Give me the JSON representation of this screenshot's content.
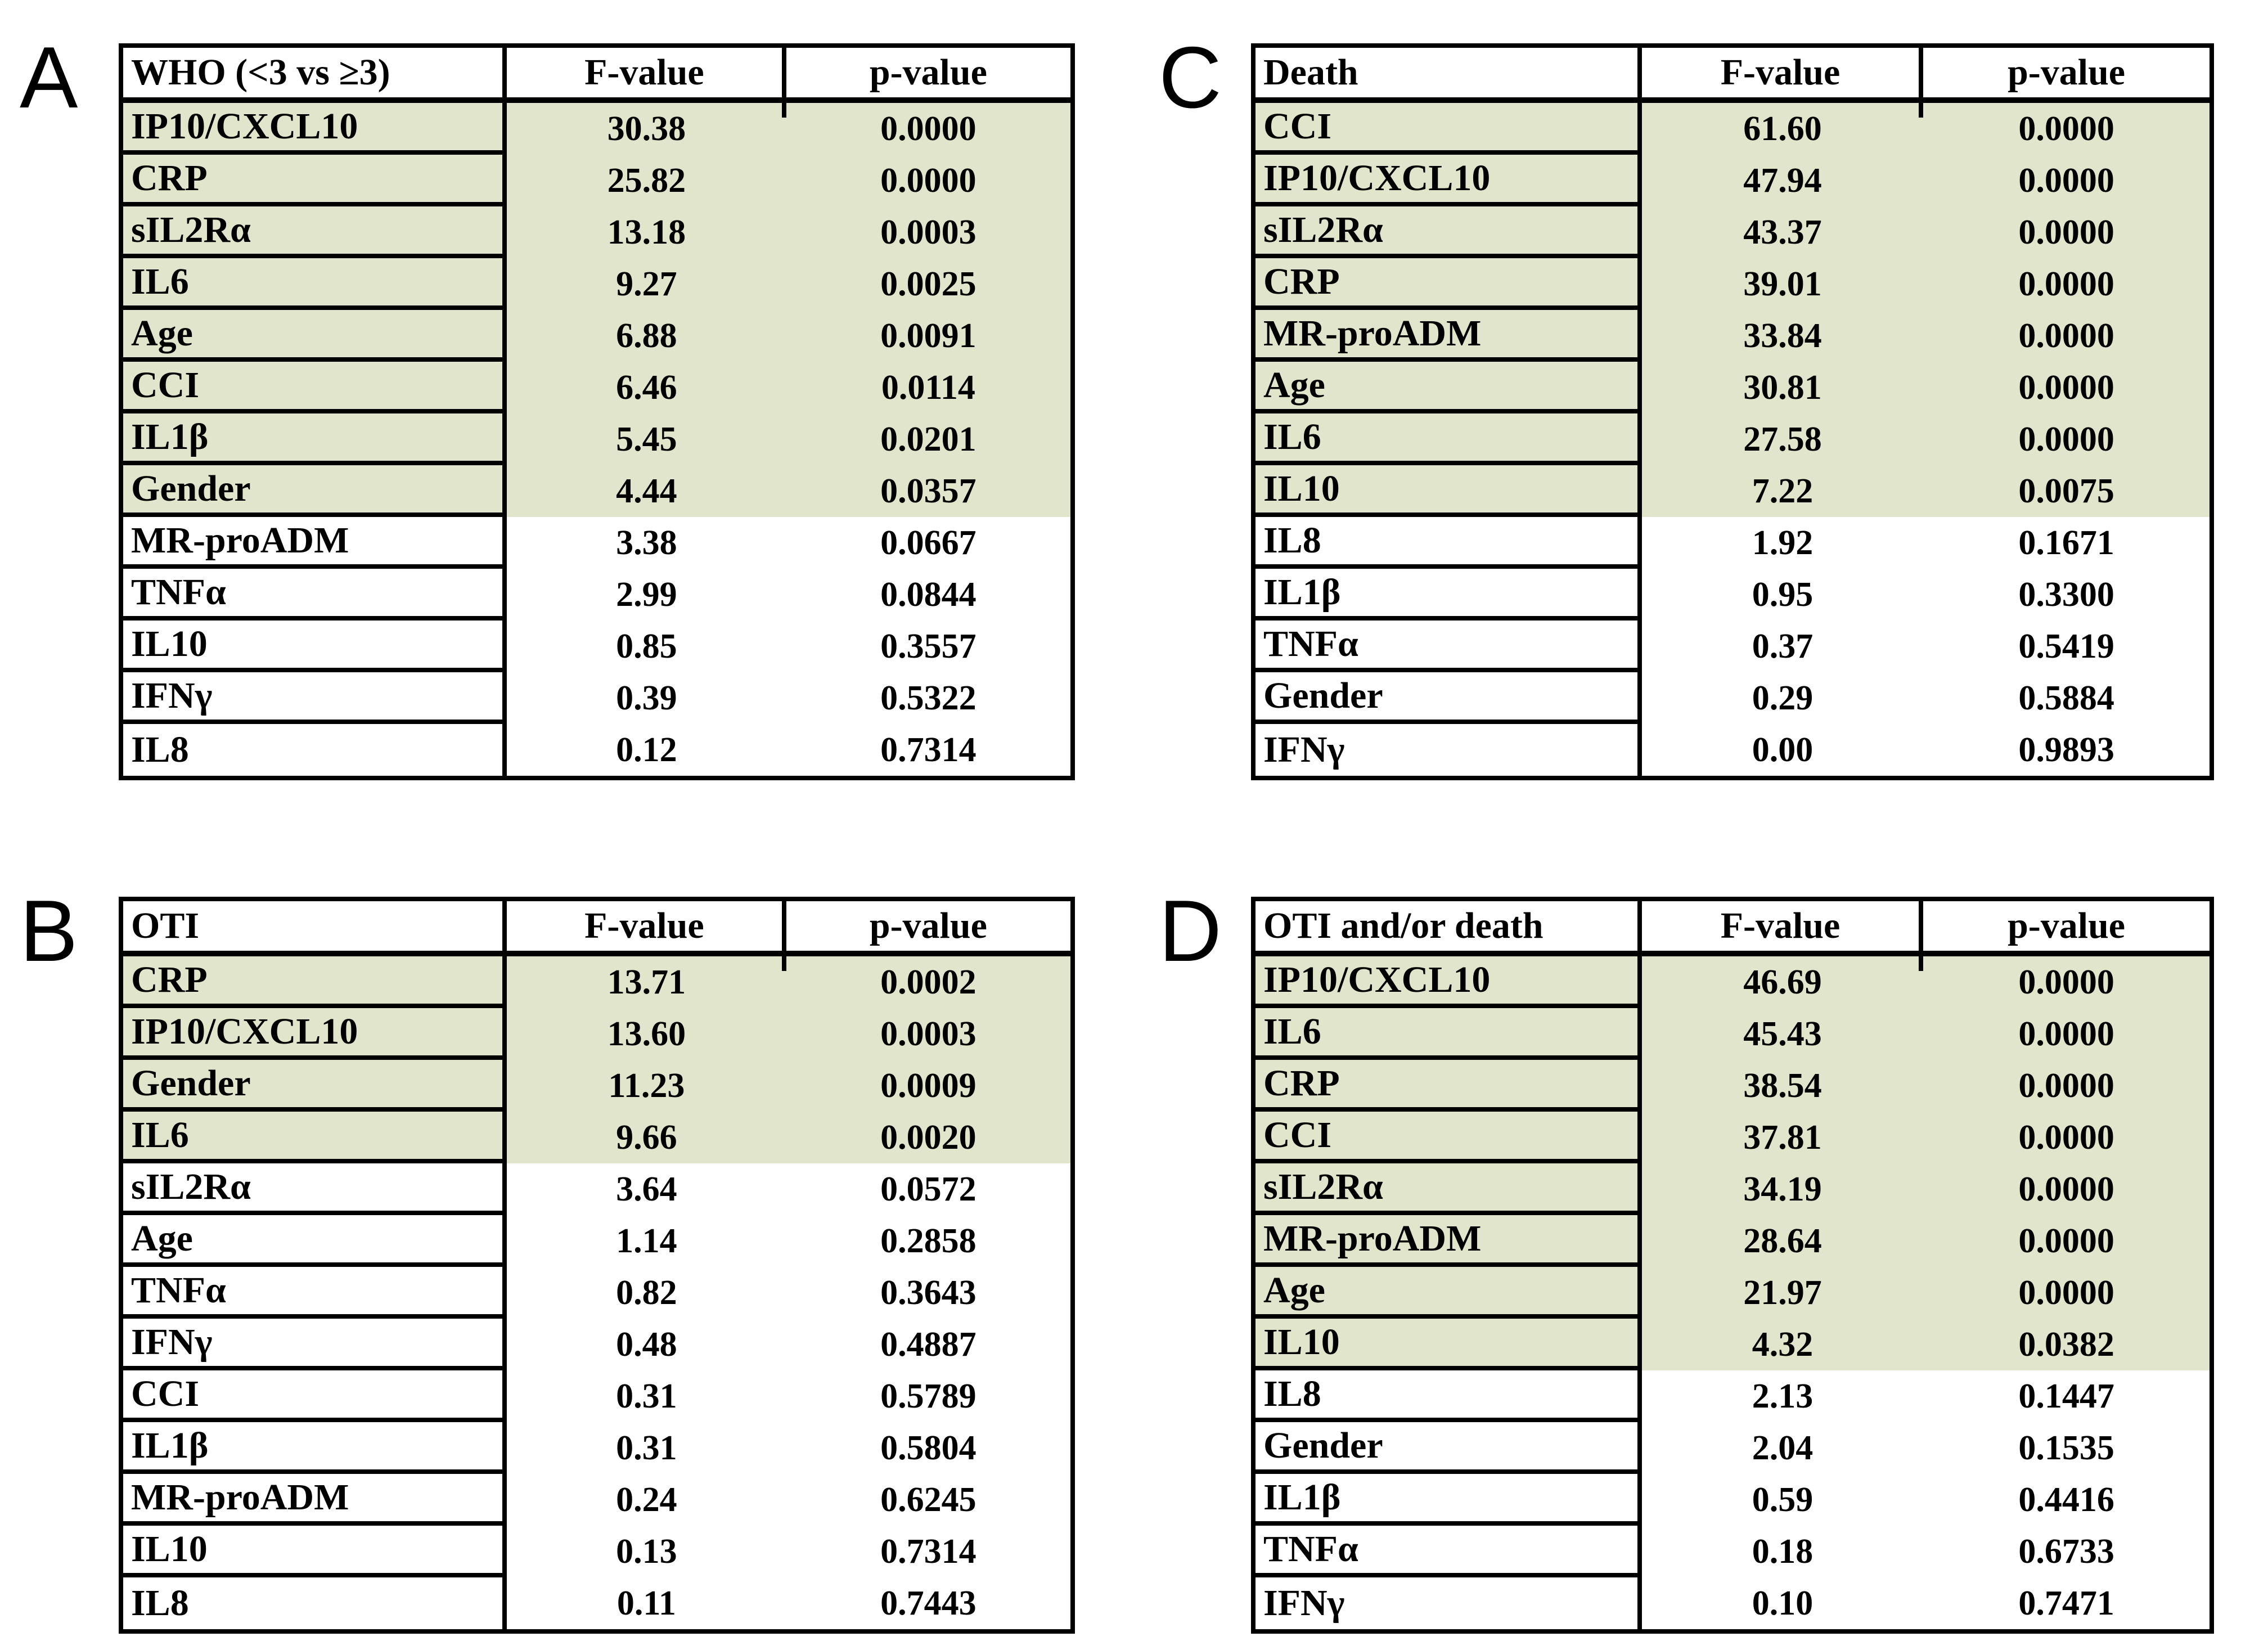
{
  "colors": {
    "highlight_green": "#e0e5cc",
    "border_black": "#000000",
    "header_bg": "#ffffff",
    "page_bg": "#ffffff",
    "text": "#000000"
  },
  "panels": [
    {
      "letter": "A",
      "title": "WHO (<3 vs ≥3)",
      "columns": [
        "F-value",
        "p-value"
      ],
      "rows": [
        {
          "label": "IP10/CXCL10",
          "f": "30.38",
          "p": "0.0000",
          "highlight": true
        },
        {
          "label": "CRP",
          "f": "25.82",
          "p": "0.0000",
          "highlight": true
        },
        {
          "label": "sIL2Rα",
          "f": "13.18",
          "p": "0.0003",
          "highlight": true
        },
        {
          "label": "IL6",
          "f": "9.27",
          "p": "0.0025",
          "highlight": true
        },
        {
          "label": "Age",
          "f": "6.88",
          "p": "0.0091",
          "highlight": true
        },
        {
          "label": "CCI",
          "f": "6.46",
          "p": "0.0114",
          "highlight": true
        },
        {
          "label": "IL1β",
          "f": "5.45",
          "p": "0.0201",
          "highlight": true
        },
        {
          "label": "Gender",
          "f": "4.44",
          "p": "0.0357",
          "highlight": true
        },
        {
          "label": "MR-proADM",
          "f": "3.38",
          "p": "0.0667",
          "highlight": false
        },
        {
          "label": "TNFα",
          "f": "2.99",
          "p": "0.0844",
          "highlight": false
        },
        {
          "label": "IL10",
          "f": "0.85",
          "p": "0.3557",
          "highlight": false
        },
        {
          "label": "IFNγ",
          "f": "0.39",
          "p": "0.5322",
          "highlight": false
        },
        {
          "label": "IL8",
          "f": "0.12",
          "p": "0.7314",
          "highlight": false
        }
      ]
    },
    {
      "letter": "C",
      "title": "Death",
      "columns": [
        "F-value",
        "p-value"
      ],
      "rows": [
        {
          "label": "CCI",
          "f": "61.60",
          "p": "0.0000",
          "highlight": true
        },
        {
          "label": "IP10/CXCL10",
          "f": "47.94",
          "p": "0.0000",
          "highlight": true
        },
        {
          "label": "sIL2Rα",
          "f": "43.37",
          "p": "0.0000",
          "highlight": true
        },
        {
          "label": "CRP",
          "f": "39.01",
          "p": "0.0000",
          "highlight": true
        },
        {
          "label": "MR-proADM",
          "f": "33.84",
          "p": "0.0000",
          "highlight": true
        },
        {
          "label": "Age",
          "f": "30.81",
          "p": "0.0000",
          "highlight": true
        },
        {
          "label": "IL6",
          "f": "27.58",
          "p": "0.0000",
          "highlight": true
        },
        {
          "label": "IL10",
          "f": "7.22",
          "p": "0.0075",
          "highlight": true
        },
        {
          "label": "IL8",
          "f": "1.92",
          "p": "0.1671",
          "highlight": false
        },
        {
          "label": "IL1β",
          "f": "0.95",
          "p": "0.3300",
          "highlight": false
        },
        {
          "label": "TNFα",
          "f": "0.37",
          "p": "0.5419",
          "highlight": false
        },
        {
          "label": "Gender",
          "f": "0.29",
          "p": "0.5884",
          "highlight": false
        },
        {
          "label": "IFNγ",
          "f": "0.00",
          "p": "0.9893",
          "highlight": false
        }
      ]
    },
    {
      "letter": "B",
      "title": "OTI",
      "columns": [
        "F-value",
        "p-value"
      ],
      "rows": [
        {
          "label": "CRP",
          "f": "13.71",
          "p": "0.0002",
          "highlight": true
        },
        {
          "label": "IP10/CXCL10",
          "f": "13.60",
          "p": "0.0003",
          "highlight": true
        },
        {
          "label": "Gender",
          "f": "11.23",
          "p": "0.0009",
          "highlight": true
        },
        {
          "label": "IL6",
          "f": "9.66",
          "p": "0.0020",
          "highlight": true
        },
        {
          "label": "sIL2Rα",
          "f": "3.64",
          "p": "0.0572",
          "highlight": false
        },
        {
          "label": "Age",
          "f": "1.14",
          "p": "0.2858",
          "highlight": false
        },
        {
          "label": "TNFα",
          "f": "0.82",
          "p": "0.3643",
          "highlight": false
        },
        {
          "label": "IFNγ",
          "f": "0.48",
          "p": "0.4887",
          "highlight": false
        },
        {
          "label": "CCI",
          "f": "0.31",
          "p": "0.5789",
          "highlight": false
        },
        {
          "label": "IL1β",
          "f": "0.31",
          "p": "0.5804",
          "highlight": false
        },
        {
          "label": "MR-proADM",
          "f": "0.24",
          "p": "0.6245",
          "highlight": false
        },
        {
          "label": "IL10",
          "f": "0.13",
          "p": "0.7314",
          "highlight": false
        },
        {
          "label": "IL8",
          "f": "0.11",
          "p": "0.7443",
          "highlight": false
        }
      ]
    },
    {
      "letter": "D",
      "title": "OTI and/or death",
      "columns": [
        "F-value",
        "p-value"
      ],
      "rows": [
        {
          "label": "IP10/CXCL10",
          "f": "46.69",
          "p": "0.0000",
          "highlight": true
        },
        {
          "label": "IL6",
          "f": "45.43",
          "p": "0.0000",
          "highlight": true
        },
        {
          "label": "CRP",
          "f": "38.54",
          "p": "0.0000",
          "highlight": true
        },
        {
          "label": "CCI",
          "f": "37.81",
          "p": "0.0000",
          "highlight": true
        },
        {
          "label": "sIL2Rα",
          "f": "34.19",
          "p": "0.0000",
          "highlight": true
        },
        {
          "label": "MR-proADM",
          "f": "28.64",
          "p": "0.0000",
          "highlight": true
        },
        {
          "label": "Age",
          "f": "21.97",
          "p": "0.0000",
          "highlight": true
        },
        {
          "label": "IL10",
          "f": "4.32",
          "p": "0.0382",
          "highlight": true
        },
        {
          "label": "IL8",
          "f": "2.13",
          "p": "0.1447",
          "highlight": false
        },
        {
          "label": "Gender",
          "f": "2.04",
          "p": "0.1535",
          "highlight": false
        },
        {
          "label": "IL1β",
          "f": "0.59",
          "p": "0.4416",
          "highlight": false
        },
        {
          "label": "TNFα",
          "f": "0.18",
          "p": "0.6733",
          "highlight": false
        },
        {
          "label": "IFNγ",
          "f": "0.10",
          "p": "0.7471",
          "highlight": false
        }
      ]
    }
  ]
}
